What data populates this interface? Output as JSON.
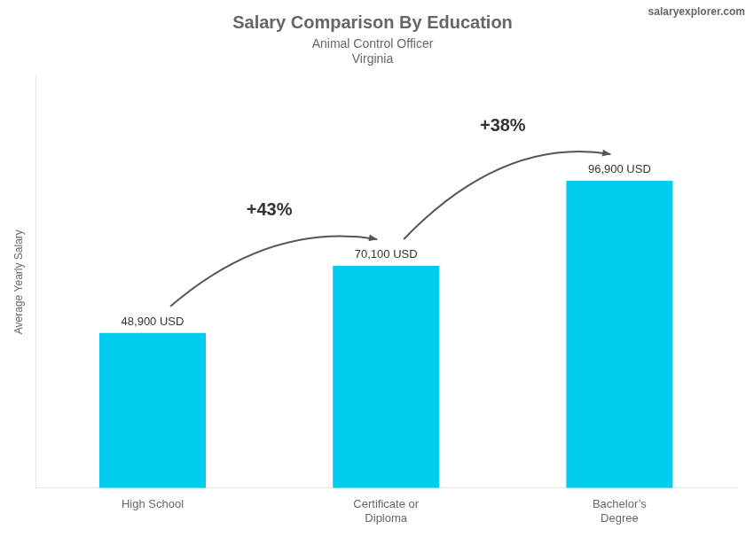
{
  "chart_data": {
    "type": "bar",
    "title": "Salary Comparison By Education",
    "subtitle": [
      "Animal Control Officer",
      "Virginia"
    ],
    "categories": [
      "High School",
      "Certificate or\nDiploma",
      "Bachelor’s\nDegree"
    ],
    "values": [
      48900,
      70100,
      96900
    ],
    "value_labels": [
      "48,900 USD",
      "70,100 USD",
      "96,900 USD"
    ],
    "data_labels": true,
    "color": "#00CCEE",
    "ylabel": "Average Yearly Salary",
    "ylim": [
      0,
      130000
    ],
    "grid": false,
    "tick_labels": "x",
    "annotations": [
      {
        "text": "+43%",
        "from": 0,
        "to": 1
      },
      {
        "text": "+38%",
        "from": 1,
        "to": 2
      },
      {
        "text": "salaryexplorer.com"
      }
    ]
  }
}
